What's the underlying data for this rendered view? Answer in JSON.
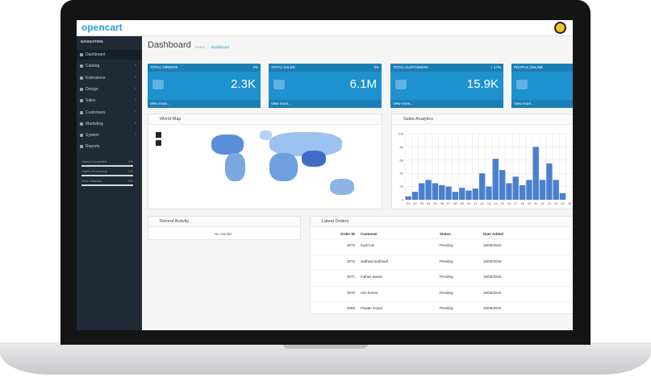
{
  "header": {
    "logo": "opencart"
  },
  "navigation": {
    "title": "NAVIGATION",
    "items": [
      "Dashboard",
      "Catalog",
      "Extensions",
      "Design",
      "Sales",
      "Customers",
      "Marketing",
      "System",
      "Reports"
    ],
    "progress": [
      {
        "label": "Orders Completed",
        "value": "0%"
      },
      {
        "label": "Orders Processing",
        "value": "0%"
      },
      {
        "label": "Other Statuses",
        "value": "0%"
      }
    ]
  },
  "page": {
    "title": "Dashboard",
    "breadcrumb": [
      "Home",
      "Dashboard"
    ]
  },
  "tiles": [
    {
      "label": "TOTAL ORDERS",
      "change": "0%",
      "value": "2.3K",
      "link": "View more..."
    },
    {
      "label": "TOTAL SALES",
      "change": "0%",
      "value": "6.1M",
      "link": "View more..."
    },
    {
      "label": "TOTAL CUSTOMERS",
      "change": "+ 17%",
      "value": "15.9K",
      "link": "View more..."
    },
    {
      "label": "PEOPLE ONLINE",
      "link": "View more..."
    }
  ],
  "world_map": {
    "title": "World Map"
  },
  "sales_analytics": {
    "title": "Sales Analytics",
    "categories": [
      "01",
      "02",
      "03",
      "04",
      "05",
      "06",
      "07",
      "08",
      "09",
      "10",
      "11",
      "12",
      "13",
      "14",
      "15",
      "16",
      "17",
      "18",
      "19",
      "20",
      "21",
      "22",
      "23",
      "24",
      "25"
    ],
    "values": [
      5,
      12,
      25,
      30,
      25,
      22,
      20,
      12,
      18,
      14,
      17,
      40,
      20,
      62,
      45,
      25,
      35,
      22,
      30,
      80,
      30,
      55,
      30,
      10,
      0
    ],
    "ylim": [
      0,
      100
    ],
    "yticks": [
      0,
      20,
      40,
      60,
      80,
      100
    ],
    "color": "#4a7fcf"
  },
  "recent_activity": {
    "title": "Recent Activity",
    "empty": "No results!"
  },
  "latest_orders": {
    "title": "Latest Orders",
    "columns": [
      "Order ID",
      "Customer",
      "Status",
      "Date Added"
    ],
    "rows": [
      [
        "3073",
        "luyis luis",
        "Pending",
        "19/05/2018"
      ],
      [
        "3072",
        "sadfasd asdfasdf",
        "Pending",
        "18/05/2018"
      ],
      [
        "3071",
        "mahes waran",
        "Pending",
        "18/05/2018"
      ],
      [
        "3070",
        "ram kumar",
        "Pending",
        "18/05/2018"
      ],
      [
        "3068",
        "Pawan Goyal",
        "Pending",
        "18/05/2018"
      ]
    ]
  }
}
